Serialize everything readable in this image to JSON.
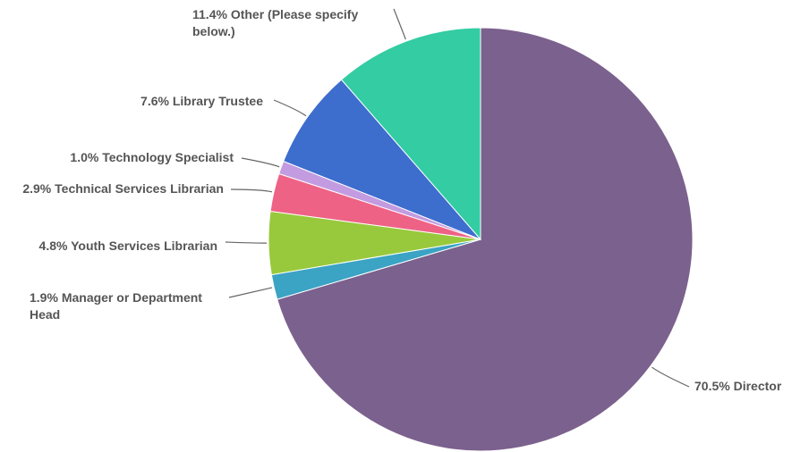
{
  "chart_data": {
    "type": "pie",
    "categories": [
      "Director",
      "Manager or Department Head",
      "Youth Services Librarian",
      "Technical Services Librarian",
      "Technology Specialist",
      "Library Trustee",
      "Other (Please specify below.)"
    ],
    "values": [
      70.5,
      1.9,
      4.8,
      2.9,
      1.0,
      7.6,
      11.4
    ],
    "value_labels": [
      "70.5%",
      "1.9%",
      "4.8%",
      "2.9%",
      "1.0%",
      "7.6%",
      "11.4%"
    ],
    "colors": [
      "#7b618d",
      "#3ba3c4",
      "#98c93c",
      "#ee6285",
      "#c39be0",
      "#3d6dcd",
      "#33cca3"
    ]
  }
}
